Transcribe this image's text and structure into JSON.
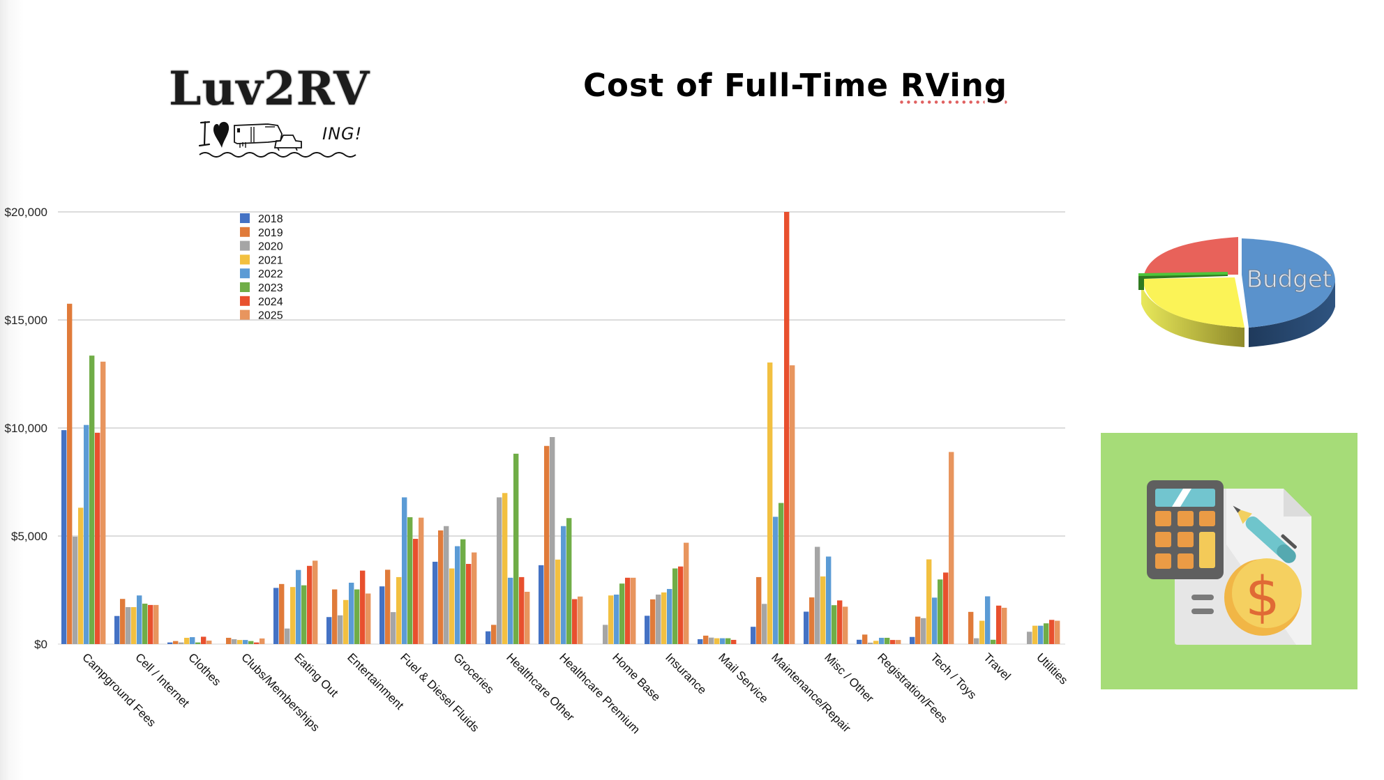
{
  "header": {
    "logo_text": "Luv2RV",
    "logo_tagline": "I ♥ RVING!",
    "logo_tagline_suffix": "ING!",
    "title_main": "Cost of Full-Time ",
    "title_emph": "RVing"
  },
  "images": {
    "budget_pie_label": "Budget",
    "calculator_icon": "calculator-document-dollar-icon"
  },
  "colors": {
    "2018": "#4472C4",
    "2019": "#E07B3A",
    "2020": "#A5A5A5",
    "2021": "#F2C040",
    "2022": "#5B9BD5",
    "2023": "#70AD47",
    "2024": "#E8502E",
    "2025": "#E8955E",
    "grid": "#c8c8c8",
    "calc_bg": "#a6dc78"
  },
  "chart_data": {
    "type": "bar",
    "title": "Cost of Full-Time RVing",
    "xlabel": "",
    "ylabel": "",
    "ylim": [
      0,
      20000
    ],
    "yticks": [
      0,
      5000,
      10000,
      15000,
      20000
    ],
    "ytick_labels": [
      "$0",
      "$5,000",
      "$10,000",
      "$15,000",
      "$20,000"
    ],
    "grid": true,
    "legend_position": "top-left",
    "categories": [
      "Campground Fees",
      "Cell / Internet",
      "Clothes",
      "Clubs/Memberships",
      "Eating Out",
      "Entertainment",
      "Fuel & Diesel Fluids",
      "Groceries",
      "Healthcare Other",
      "Healthcare Premium",
      "Home Base",
      "Insurance",
      "Mail Service",
      "Maintenance/Repair",
      "Misc / Other",
      "Registration/Fees",
      "Tech / Toys",
      "Travel",
      "Utilities"
    ],
    "series": [
      {
        "name": "2018",
        "values": [
          9900,
          1300,
          75,
          0,
          2600,
          1250,
          2670,
          3810,
          590,
          3650,
          0,
          1310,
          225,
          800,
          1500,
          200,
          330,
          0,
          0
        ]
      },
      {
        "name": "2019",
        "values": [
          15750,
          2090,
          140,
          290,
          2780,
          2530,
          3440,
          5260,
          890,
          9170,
          0,
          2070,
          390,
          3100,
          2160,
          440,
          1270,
          1490,
          0
        ]
      },
      {
        "name": "2020",
        "values": [
          4970,
          1710,
          75,
          225,
          720,
          1330,
          1480,
          5460,
          6790,
          9580,
          890,
          2290,
          300,
          1860,
          4500,
          65,
          1200,
          270,
          570
        ]
      },
      {
        "name": "2021",
        "values": [
          6310,
          1710,
          290,
          190,
          2640,
          2040,
          3100,
          3500,
          6990,
          3910,
          2250,
          2390,
          270,
          13030,
          3130,
          150,
          3920,
          1080,
          850
        ]
      },
      {
        "name": "2022",
        "values": [
          10140,
          2250,
          320,
          190,
          3430,
          2840,
          6790,
          4530,
          3070,
          5460,
          2290,
          2550,
          270,
          5890,
          4050,
          290,
          2150,
          2210,
          850
        ]
      },
      {
        "name": "2023",
        "values": [
          13350,
          1870,
          75,
          140,
          2720,
          2530,
          5870,
          4850,
          8810,
          5830,
          2800,
          3500,
          270,
          6530,
          1800,
          290,
          2990,
          200,
          960
        ]
      },
      {
        "name": "2024",
        "values": [
          9780,
          1810,
          340,
          75,
          3620,
          3400,
          4870,
          3710,
          3100,
          2080,
          3070,
          3590,
          195,
          20000,
          2020,
          190,
          3310,
          1780,
          1120
        ]
      },
      {
        "name": "2025",
        "values": [
          13070,
          1810,
          160,
          260,
          3860,
          2340,
          5850,
          4240,
          2420,
          2200,
          3070,
          4690,
          0,
          12900,
          1730,
          190,
          8890,
          1680,
          1080
        ]
      }
    ]
  }
}
